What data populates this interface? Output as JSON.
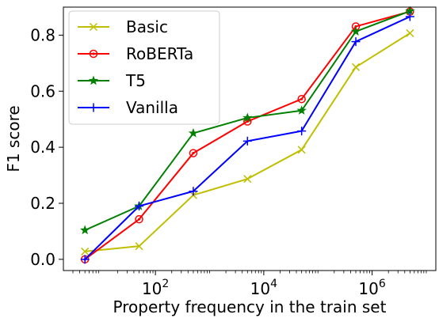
{
  "chart_data": {
    "type": "line",
    "xlabel": "Property frequency in the train set",
    "ylabel": "F1 score",
    "xscale": "log",
    "xlim": [
      2,
      15000000
    ],
    "ylim": [
      -0.04,
      0.9
    ],
    "legend_position": "top-left",
    "grid": false,
    "x": [
      5,
      50,
      500,
      5000,
      50000,
      500000,
      5000000
    ],
    "x_ticks": [
      {
        "value": 100,
        "base": "10",
        "exp": "2"
      },
      {
        "value": 10000,
        "base": "10",
        "exp": "4"
      },
      {
        "value": 1000000,
        "base": "10",
        "exp": "6"
      }
    ],
    "y_ticks": [
      {
        "value": 0.0,
        "label": "0.0"
      },
      {
        "value": 0.2,
        "label": "0.2"
      },
      {
        "value": 0.4,
        "label": "0.4"
      },
      {
        "value": 0.6,
        "label": "0.6"
      },
      {
        "value": 0.8,
        "label": "0.8"
      }
    ],
    "series": [
      {
        "name": "Basic",
        "color": "#bfbf00",
        "marker": "x",
        "values": [
          0.028,
          0.047,
          0.229,
          0.287,
          0.391,
          0.686,
          0.807
        ]
      },
      {
        "name": "RoBERTa",
        "color": "#ff0000",
        "marker": "circle",
        "values": [
          0.0,
          0.143,
          0.379,
          0.492,
          0.572,
          0.831,
          0.884
        ]
      },
      {
        "name": "T5",
        "color": "#008000",
        "marker": "star",
        "values": [
          0.104,
          0.19,
          0.45,
          0.505,
          0.531,
          0.813,
          0.886
        ]
      },
      {
        "name": "Vanilla",
        "color": "#0000ff",
        "marker": "plus",
        "values": [
          0.0,
          0.19,
          0.243,
          0.422,
          0.458,
          0.777,
          0.866
        ]
      }
    ]
  }
}
